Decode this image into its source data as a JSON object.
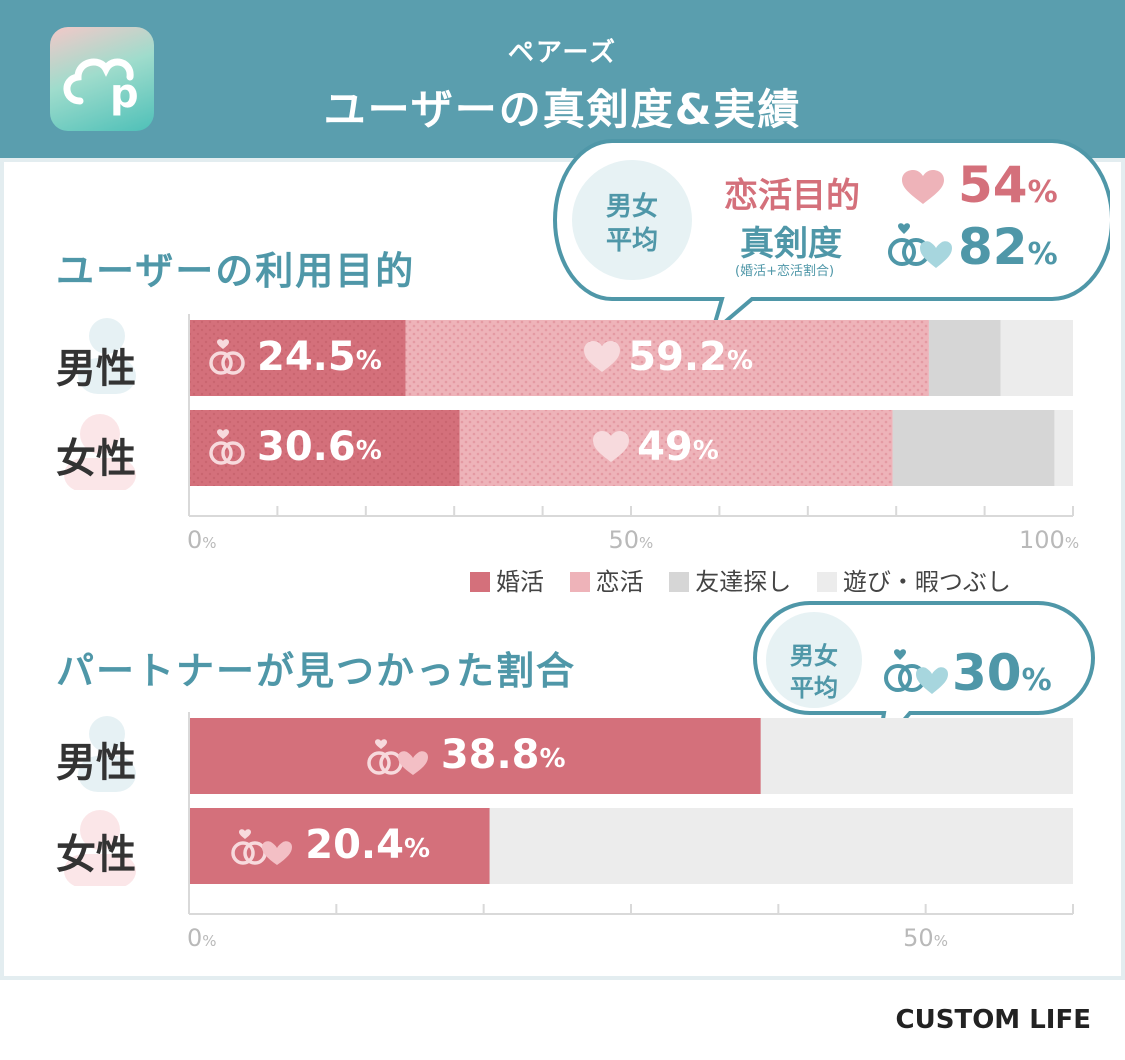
{
  "header": {
    "subtitle": "ペアーズ",
    "title": "ユーザーの真剣度&実績",
    "logo_letter": "p",
    "bg_color": "#5a9eae"
  },
  "colors": {
    "konkatsu": "#d4707b",
    "renkatsu": "#eeb3b9",
    "tomodachi": "#d6d6d6",
    "asobi": "#ececec",
    "teal": "#4f97a8"
  },
  "purpose_bubble": {
    "avg_label_1": "男女",
    "avg_label_2": "平均",
    "label_1": "恋活目的",
    "label_2": "真剣度",
    "label_note": "(婚活+恋活割合)",
    "value_1": "54",
    "value_2": "82",
    "unit": "%"
  },
  "found_bubble": {
    "avg_label_1": "男女",
    "avg_label_2": "平均",
    "value": "30",
    "unit": "%"
  },
  "chart_data": [
    {
      "type": "bar",
      "orientation": "horizontal",
      "stacked": true,
      "title": "ユーザーの利用目的",
      "categories": [
        "男性",
        "女性"
      ],
      "series": [
        {
          "name": "婚活",
          "values": [
            24.5,
            30.6
          ],
          "labels": [
            "24.5",
            "30.6"
          ],
          "icon": "rings-icon"
        },
        {
          "name": "恋活",
          "values": [
            59.2,
            49
          ],
          "labels": [
            "59.2",
            "49"
          ],
          "icon": "heart-icon"
        },
        {
          "name": "友達探し",
          "values": [
            8.1,
            18.3
          ]
        },
        {
          "name": "遊び・暇つぶし",
          "values": [
            8.2,
            2.1
          ]
        }
      ],
      "xlim": [
        0,
        100
      ],
      "x_ticks": [
        0,
        50,
        100
      ],
      "x_tick_labels": [
        "0",
        "50",
        "100"
      ],
      "unit": "%",
      "legend": "bottom-right"
    },
    {
      "type": "bar",
      "orientation": "horizontal",
      "title": "パートナーが見つかった割合",
      "categories": [
        "男性",
        "女性"
      ],
      "values": [
        38.8,
        20.4
      ],
      "labels": [
        "38.8",
        "20.4"
      ],
      "xlim": [
        0,
        60
      ],
      "x_ticks": [
        0,
        50
      ],
      "x_tick_labels": [
        "0",
        "50"
      ],
      "unit": "%"
    }
  ],
  "credit": "CUSTOM LIFE"
}
